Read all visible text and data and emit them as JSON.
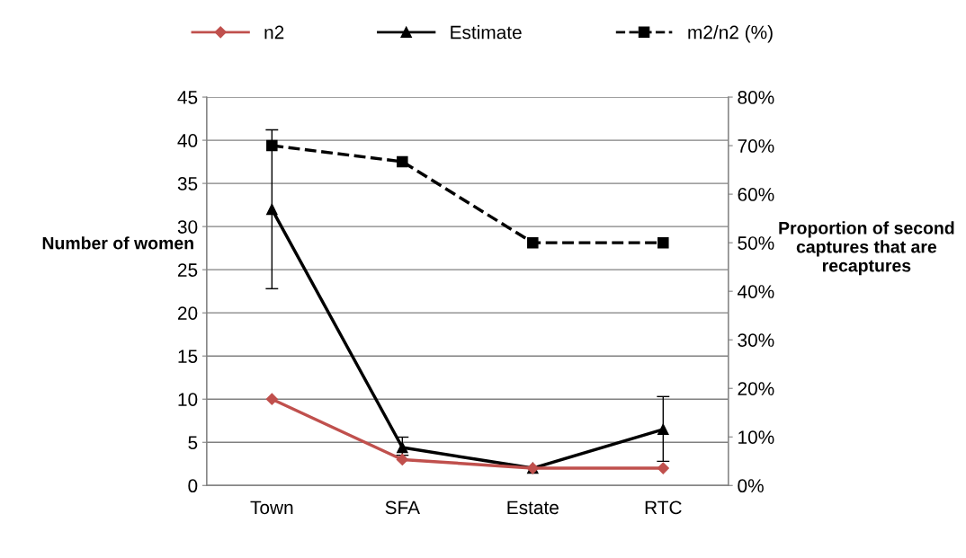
{
  "chart_data": {
    "type": "line",
    "categories": [
      "Town",
      "SFA",
      "Estate",
      "RTC"
    ],
    "ylabel": "Number of women",
    "y2label": "Proportion of second captures that are recaptures",
    "ylim": [
      0,
      45
    ],
    "yticks": [
      0,
      5,
      10,
      15,
      20,
      25,
      30,
      35,
      40,
      45
    ],
    "y2lim": [
      0,
      80
    ],
    "y2ticks": [
      {
        "value": 0,
        "label": "0%"
      },
      {
        "value": 10,
        "label": "10%"
      },
      {
        "value": 20,
        "label": "20%"
      },
      {
        "value": 30,
        "label": "30%"
      },
      {
        "value": 40,
        "label": "40%"
      },
      {
        "value": 50,
        "label": "50%"
      },
      {
        "value": 60,
        "label": "60%"
      },
      {
        "value": 70,
        "label": "70%"
      },
      {
        "value": 80,
        "label": "80%"
      }
    ],
    "grid": "y",
    "legend": "top",
    "series": [
      {
        "name": "n2",
        "color": "#c0504d",
        "values": [
          10,
          3,
          2,
          2
        ],
        "marker": "diamond",
        "line_style": "solid"
      },
      {
        "name": "Estimate",
        "color": "#000000",
        "values": [
          32,
          4.4,
          2,
          6.5
        ],
        "marker": "triangle",
        "line_style": "solid",
        "errors": [
          [
            22.8,
            41.2
          ],
          [
            3.5,
            5.6
          ],
          null,
          [
            2.8,
            10.3
          ]
        ]
      },
      {
        "name": "m2/n2 (%)",
        "color": "#000000",
        "values": [
          70,
          66.7,
          50,
          50
        ],
        "marker": "square",
        "line_style": "dashed",
        "axis": "y2"
      }
    ]
  }
}
